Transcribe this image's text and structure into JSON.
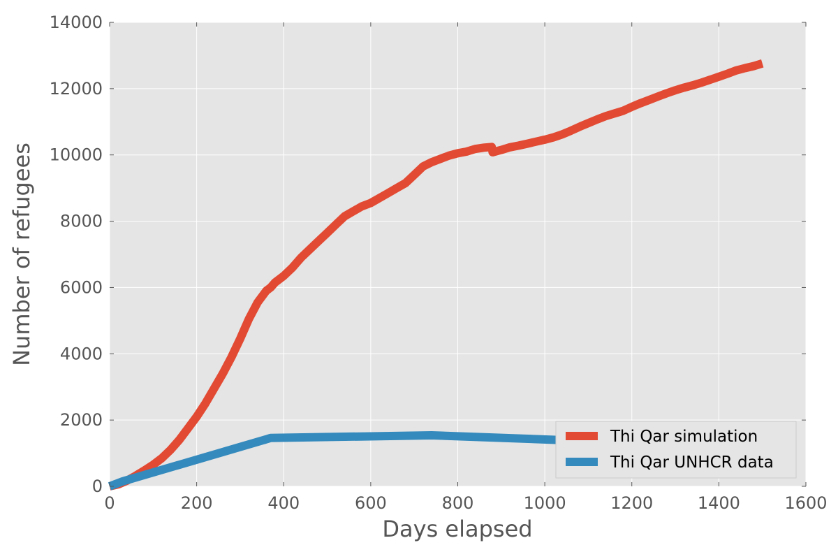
{
  "chart_data": {
    "type": "line",
    "title": "",
    "xlabel": "Days elapsed",
    "ylabel": "Number of refugees",
    "xlim": [
      0,
      1600
    ],
    "ylim": [
      0,
      14000
    ],
    "xticks": [
      0,
      200,
      400,
      600,
      800,
      1000,
      1200,
      1400,
      1600
    ],
    "yticks": [
      0,
      2000,
      4000,
      6000,
      8000,
      10000,
      12000,
      14000
    ],
    "grid": true,
    "legend_position": "lower-right",
    "series": [
      {
        "name": "Thi Qar simulation",
        "color": "#e24a33",
        "x": [
          0,
          20,
          40,
          60,
          80,
          100,
          120,
          140,
          160,
          180,
          200,
          220,
          240,
          260,
          280,
          300,
          320,
          340,
          360,
          370,
          380,
          400,
          420,
          440,
          460,
          480,
          500,
          520,
          540,
          560,
          580,
          600,
          620,
          640,
          660,
          680,
          700,
          720,
          740,
          760,
          780,
          800,
          820,
          840,
          860,
          878,
          880,
          900,
          920,
          940,
          960,
          980,
          1000,
          1020,
          1040,
          1060,
          1080,
          1100,
          1120,
          1140,
          1160,
          1180,
          1200,
          1220,
          1240,
          1260,
          1280,
          1300,
          1320,
          1340,
          1360,
          1380,
          1400,
          1420,
          1440,
          1460,
          1480,
          1500
        ],
        "values": [
          0,
          60,
          170,
          320,
          480,
          650,
          850,
          1100,
          1400,
          1750,
          2100,
          2500,
          2950,
          3400,
          3900,
          4450,
          5050,
          5550,
          5900,
          6000,
          6150,
          6350,
          6600,
          6900,
          7150,
          7400,
          7650,
          7900,
          8150,
          8300,
          8450,
          8550,
          8700,
          8850,
          9000,
          9150,
          9400,
          9650,
          9780,
          9880,
          9980,
          10050,
          10100,
          10180,
          10220,
          10240,
          10080,
          10150,
          10230,
          10280,
          10340,
          10400,
          10460,
          10530,
          10620,
          10730,
          10850,
          10960,
          11070,
          11170,
          11250,
          11330,
          11450,
          11560,
          11660,
          11760,
          11860,
          11950,
          12030,
          12100,
          12180,
          12270,
          12360,
          12450,
          12550,
          12620,
          12680,
          12760
        ]
      },
      {
        "name": "Thi Qar UNHCR data",
        "color": "#348abd",
        "x": [
          0,
          30,
          370,
          740,
          1030,
          1050
        ],
        "values": [
          0,
          150,
          1460,
          1540,
          1400,
          1400
        ]
      }
    ]
  }
}
